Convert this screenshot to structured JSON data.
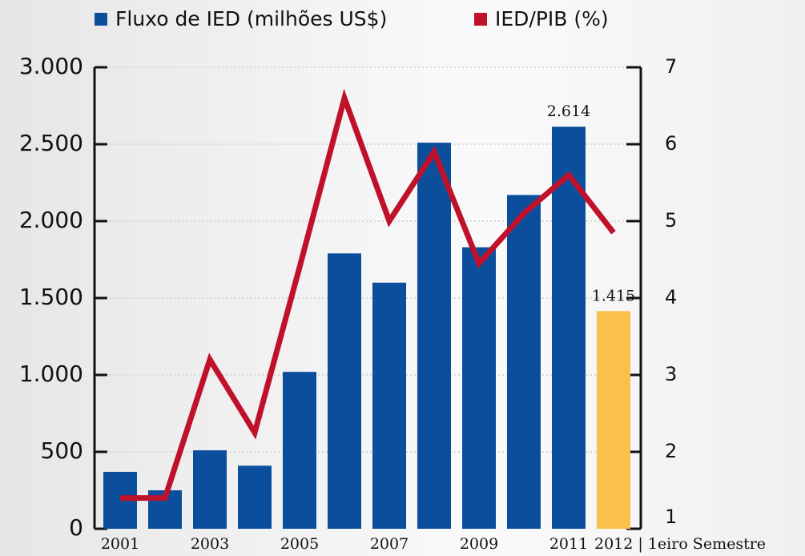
{
  "chart_data": {
    "type": "bar_line",
    "categories": [
      "2001",
      null,
      "2003",
      null,
      "2005",
      null,
      "2007",
      null,
      "2009",
      null,
      "2011",
      "2012 | 1eiro Semestre"
    ],
    "series": [
      {
        "name": "Fluxo de IED (milhões US$)",
        "type": "bar",
        "color": "#0b4f9c",
        "colors": [
          "#0b4f9c",
          "#0b4f9c",
          "#0b4f9c",
          "#0b4f9c",
          "#0b4f9c",
          "#0b4f9c",
          "#0b4f9c",
          "#0b4f9c",
          "#0b4f9c",
          "#0b4f9c",
          "#0b4f9c",
          "#fbc04a"
        ],
        "values": [
          370,
          250,
          510,
          410,
          1020,
          1790,
          1600,
          2510,
          1830,
          2170,
          2614,
          1415
        ],
        "value_labels": [
          null,
          null,
          null,
          null,
          null,
          null,
          null,
          null,
          null,
          null,
          "2.614",
          "1.415"
        ]
      },
      {
        "name": "IED/PIB (%)",
        "type": "line",
        "color": "#c0112b",
        "axis": "y2",
        "values": [
          1.4,
          1.4,
          3.2,
          2.25,
          4.4,
          6.6,
          5.0,
          5.9,
          4.45,
          5.1,
          5.6,
          4.85
        ]
      }
    ],
    "ylim": [
      0,
      3000
    ],
    "yticks": [
      0,
      500,
      {
        "value": 1000,
        "label": "1.000"
      },
      {
        "value": 1500,
        "label": "1.500"
      },
      {
        "value": 2000,
        "label": "2.000"
      },
      {
        "value": 2500,
        "label": "2.500"
      },
      {
        "value": 3000,
        "label": "3.000"
      }
    ],
    "y2lim": [
      1,
      7
    ],
    "y2ticks": [
      1,
      2,
      3,
      4,
      5,
      6,
      7
    ],
    "grid": true
  }
}
